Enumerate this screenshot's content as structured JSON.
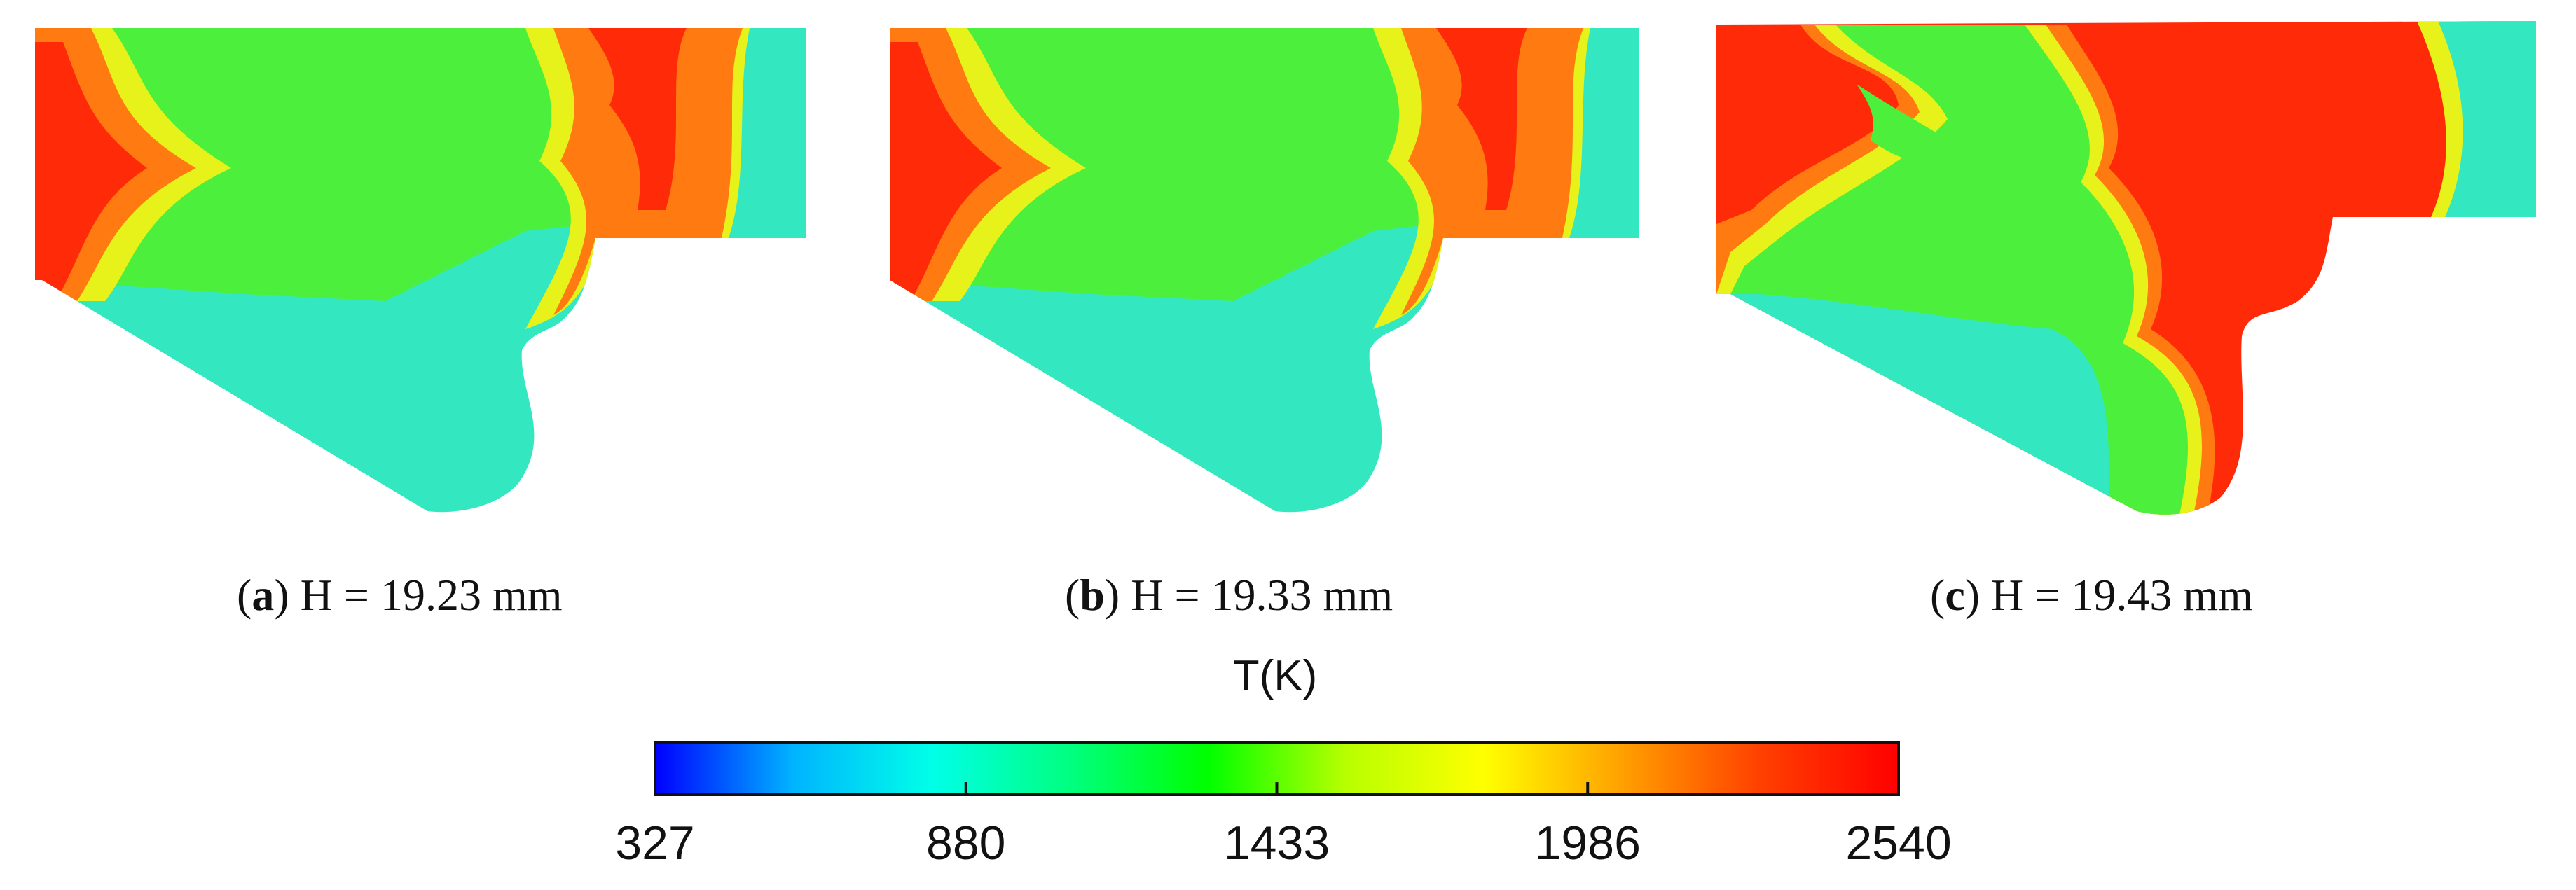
{
  "panels": [
    {
      "letter": "a",
      "label": "H = 19.23 mm"
    },
    {
      "letter": "b",
      "label": "H = 19.33 mm"
    },
    {
      "letter": "c",
      "label": "H = 19.43 mm"
    }
  ],
  "colorbar": {
    "title": "T(K)",
    "min": 327,
    "max": 2540,
    "ticks": [
      "327",
      "880",
      "1433",
      "1986",
      "2540"
    ],
    "colors": [
      "#0000ff",
      "#00b4ff",
      "#00ffe8",
      "#00ff80",
      "#00ff00",
      "#b8ff00",
      "#ffff00",
      "#ffa000",
      "#ff4000",
      "#ff0000"
    ]
  },
  "palette": {
    "cyan": "#33e8c0",
    "green": "#4cf03c",
    "yellow": "#e6f21a",
    "orange": "#ff7a10",
    "red": "#ff2a08"
  }
}
